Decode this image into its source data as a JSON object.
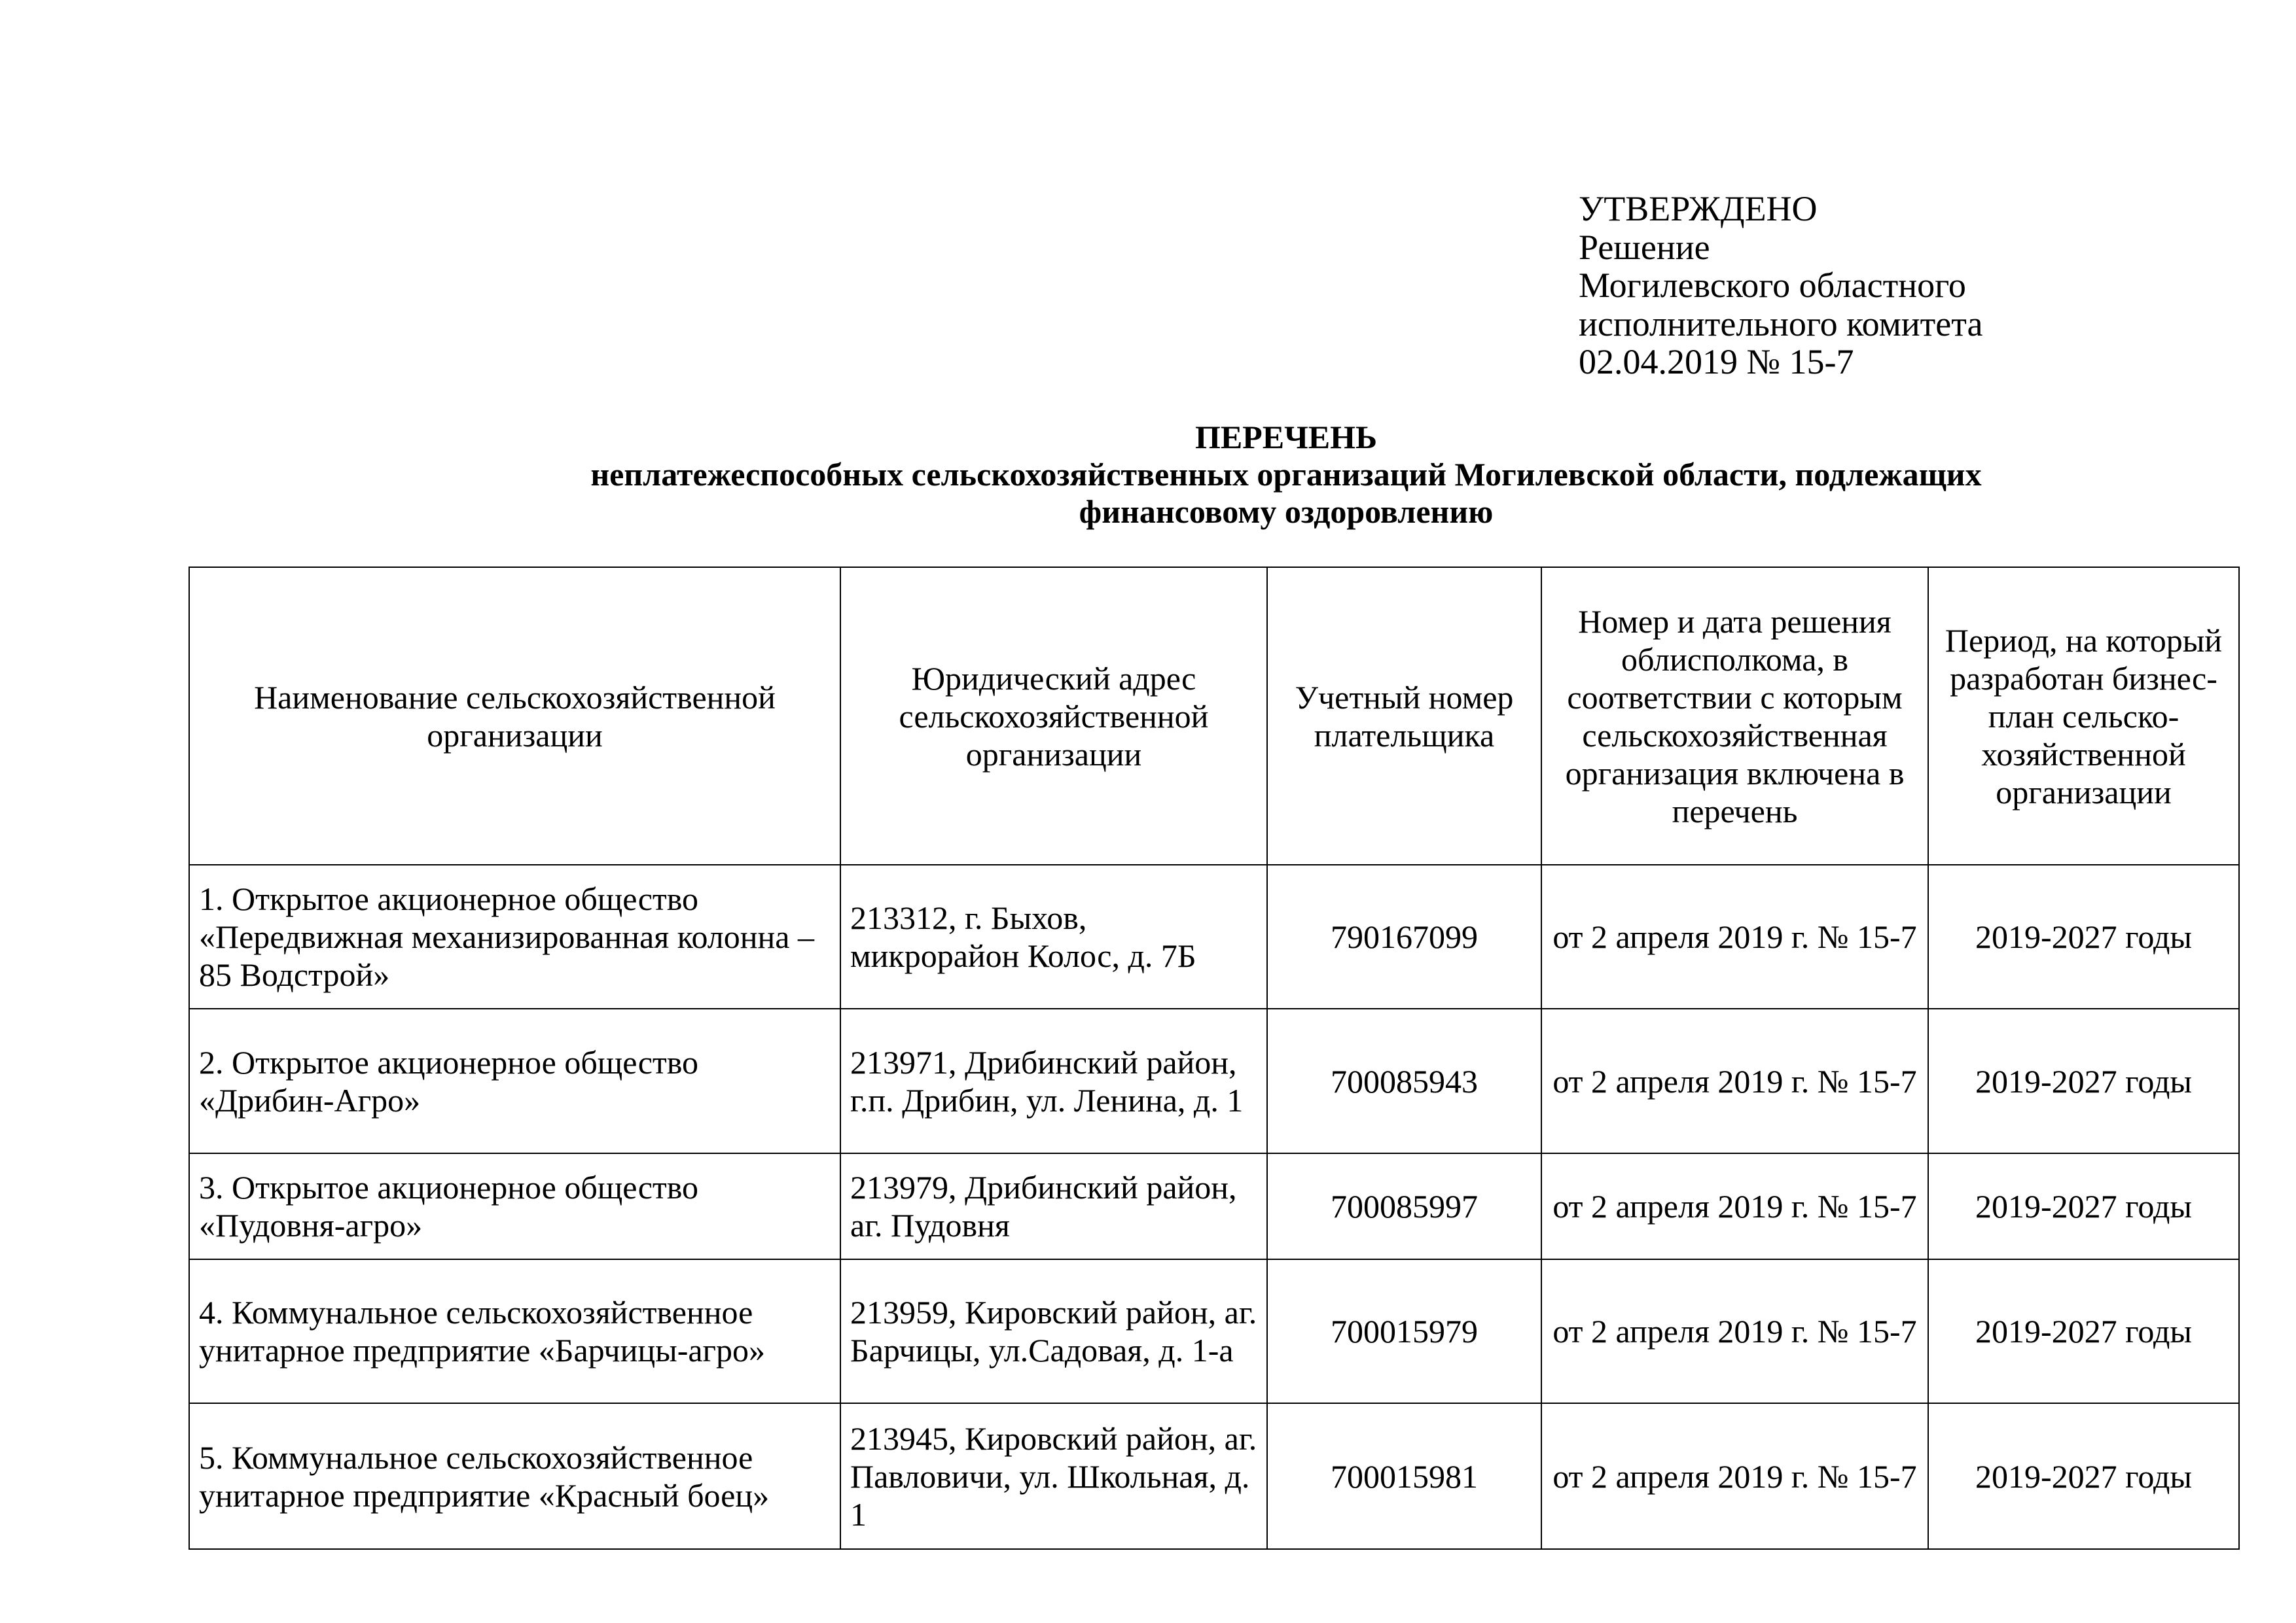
{
  "approval": {
    "lines": [
      "УТВЕРЖДЕНО",
      "Решение",
      "Могилевского областного",
      "исполнительного комитета",
      "02.04.2019 № 15-7"
    ]
  },
  "title": {
    "heading": "ПЕРЕЧЕНЬ",
    "subtitle_line1": "неплатежеспособных сельскохозяйственных организаций Могилевской области, подлежащих",
    "subtitle_line2": "финансовому оздоровлению"
  },
  "table": {
    "headers": [
      "Наименование сельскохозяйственной организации",
      "Юридический адрес сельскохозяйственной организации",
      "Учетный номер плательщика",
      "Номер и дата решения облисполкома, в соответствии с которым сельскохозяйственная организация включена в перечень",
      "Период, на который разработан бизнес-план сельско-хозяйственной организации"
    ],
    "rows": [
      {
        "name": "1. Открытое акционерное общество «Передвижная механизированная колонна – 85 Водстрой»",
        "address": "213312, г. Быхов, микрорайон Колос, д. 7Б",
        "payer_number": "790167099",
        "decision": "от 2 апреля 2019 г. № 15-7",
        "period": "2019-2027 годы"
      },
      {
        "name": "2. Открытое акционерное общество «Дрибин-Агро»",
        "address": "213971, Дрибинский район, г.п. Дрибин, ул. Ленина, д. 1",
        "payer_number": "700085943",
        "decision": "от 2 апреля 2019 г. № 15-7",
        "period": "2019-2027 годы"
      },
      {
        "name": "3. Открытое акционерное общество «Пудовня-агро»",
        "address": "213979, Дрибинский район, аг. Пудовня",
        "payer_number": "700085997",
        "decision": "от 2 апреля 2019 г. № 15-7",
        "period": "2019-2027 годы"
      },
      {
        "name": "4. Коммунальное сельскохозяйственное унитарное предприятие «Барчицы-агро»",
        "address": "213959, Кировский район, аг. Барчицы, ул.Садовая, д. 1-а",
        "payer_number": "700015979",
        "decision": "от 2 апреля 2019 г. № 15-7",
        "period": "2019-2027 годы"
      },
      {
        "name": "5. Коммунальное сельскохозяйственное унитарное предприятие «Красный боец»",
        "address": "213945, Кировский район, аг. Павловичи, ул. Школьная, д. 1",
        "payer_number": "700015981",
        "decision": "от 2 апреля 2019 г. № 15-7",
        "period": "2019-2027 годы"
      }
    ]
  }
}
